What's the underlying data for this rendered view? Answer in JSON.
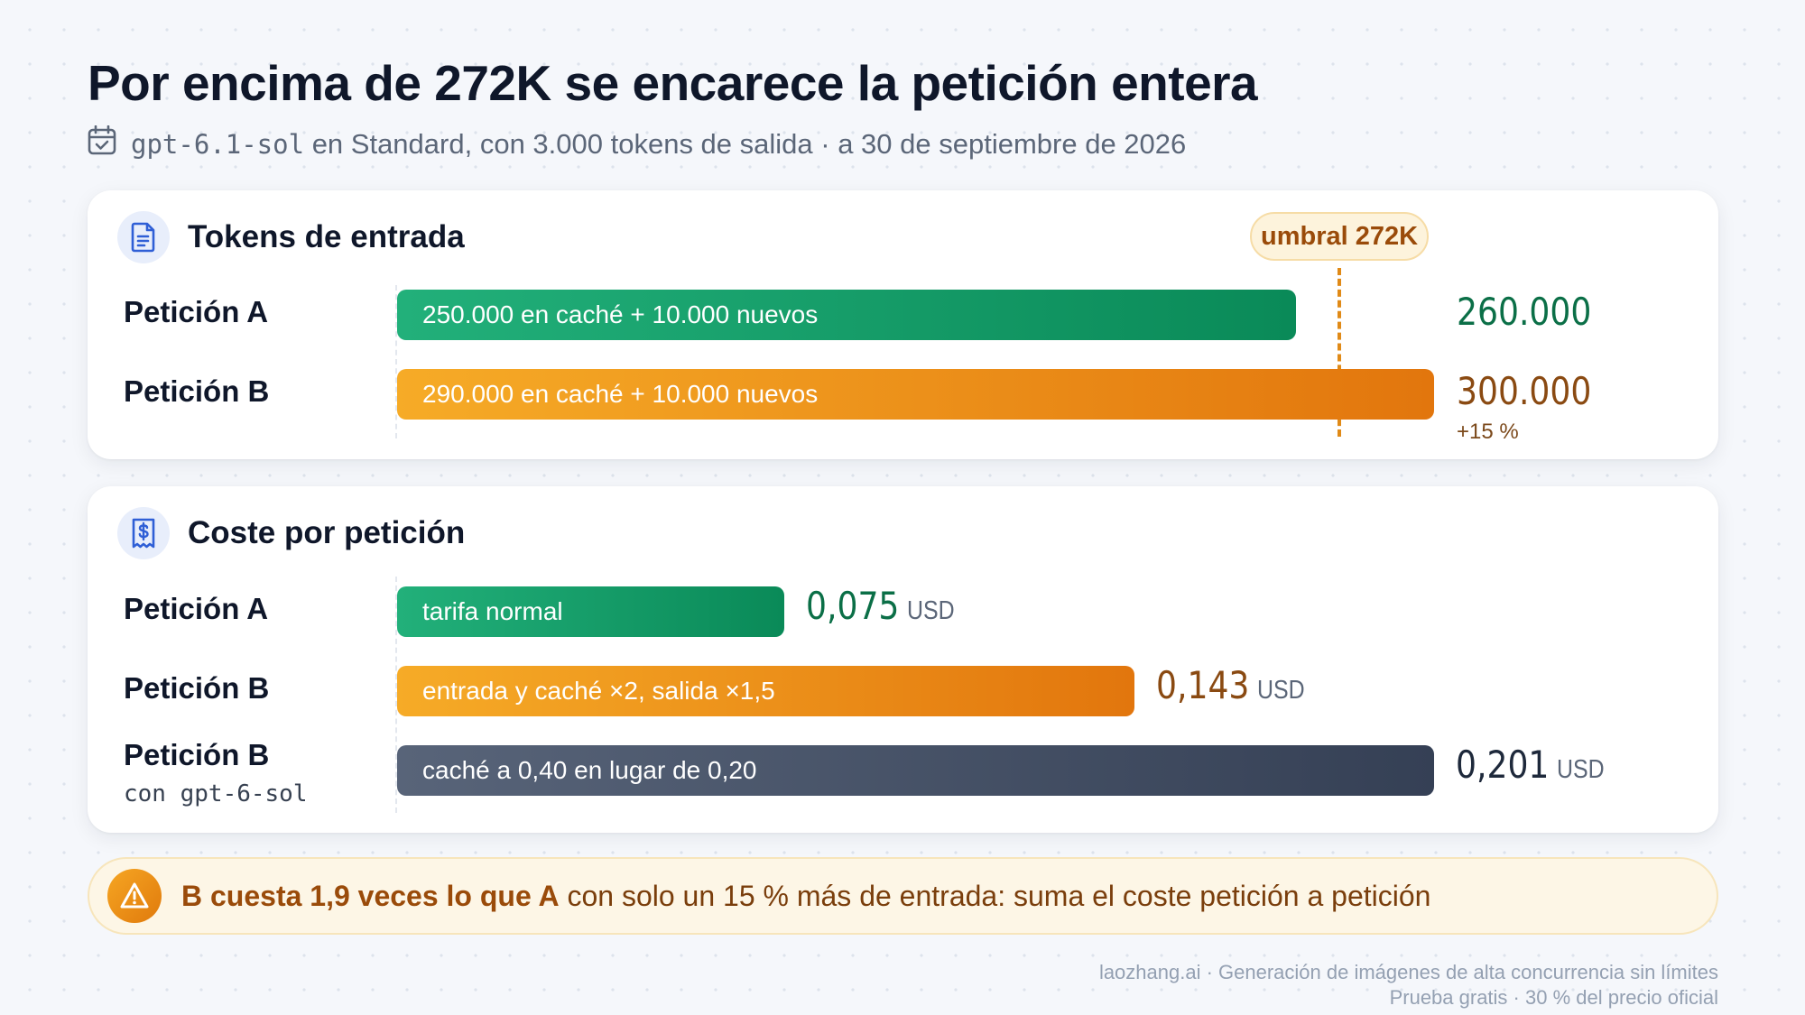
{
  "title": "Por encima de 272K se encarece la petición entera",
  "subtitle": {
    "icon": "calendar-check-icon",
    "model": "gpt-6.1-sol",
    "text": "en Standard, con 3.000 tokens de salida · a 30 de septiembre de 2026"
  },
  "colors": {
    "request_a": "#0f9a62",
    "request_b": "#ee8f19",
    "alternative": "#3d4759",
    "threshold": "#e08a17"
  },
  "chart_data": [
    {
      "type": "bar",
      "orientation": "horizontal",
      "title": "Tokens de entrada",
      "icon": "document-icon",
      "threshold": {
        "label": "umbral 272K",
        "value": 272000
      },
      "categories": [
        "Petición A",
        "Petición B"
      ],
      "values": [
        260000,
        300000
      ],
      "bar_labels": [
        "250.000 en caché + 10.000 nuevos",
        "290.000 en caché + 10.000 nuevos"
      ],
      "value_labels": [
        "260.000",
        "300.000"
      ],
      "notes": [
        "",
        "+15 %"
      ],
      "series_colors": [
        "#0f9a62",
        "#ee8f19"
      ]
    },
    {
      "type": "bar",
      "orientation": "horizontal",
      "title": "Coste por petición",
      "icon": "receipt-dollar-icon",
      "unit": "USD",
      "categories": [
        "Petición A",
        "Petición B",
        "Petición B"
      ],
      "category_sublabels": [
        "",
        "",
        "con gpt-6-sol"
      ],
      "values": [
        0.075,
        0.143,
        0.201
      ],
      "bar_labels": [
        "tarifa normal",
        "entrada y caché ×2, salida ×1,5",
        "caché a 0,40 en lugar de 0,20"
      ],
      "value_labels": [
        "0,075",
        "0,143",
        "0,201"
      ],
      "series_colors": [
        "#0f9a62",
        "#ee8f19",
        "#3d4759"
      ]
    }
  ],
  "callout": {
    "icon": "warning-icon",
    "bold": "B cuesta 1,9 veces lo que A",
    "rest": " con solo un 15 % más de entrada: suma el coste petición a petición"
  },
  "footer": {
    "line1": "laozhang.ai · Generación de imágenes de alta concurrencia sin límites",
    "line2": "Prueba gratis · 30 % del precio oficial"
  }
}
